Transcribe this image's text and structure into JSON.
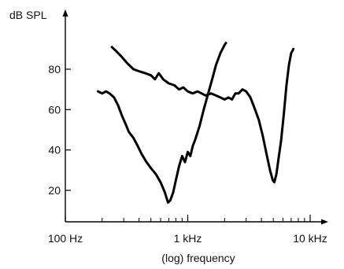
{
  "chart_data": {
    "type": "line",
    "title": "",
    "xlabel": "(log) frequency",
    "ylabel": "dB SPL",
    "x_scale": "log",
    "xlim": [
      100,
      10000
    ],
    "ylim": [
      4,
      100
    ],
    "x_ticks": [
      {
        "value": 100,
        "label": "100 Hz"
      },
      {
        "value": 1000,
        "label": "1 kHz"
      },
      {
        "value": 10000,
        "label": "10 kHz"
      }
    ],
    "x_minor_ticks": [
      200,
      300,
      400,
      500,
      600,
      700,
      800,
      900,
      2000,
      3000,
      4000,
      5000,
      6000,
      7000,
      8000,
      9000
    ],
    "y_ticks": [
      {
        "value": 20,
        "label": "20"
      },
      {
        "value": 40,
        "label": "40"
      },
      {
        "value": 60,
        "label": "60"
      },
      {
        "value": 80,
        "label": "80"
      }
    ],
    "grid": false,
    "legend": "none",
    "line_color": "#000000",
    "series": [
      {
        "points": [
          [
            185,
            69
          ],
          [
            200,
            68
          ],
          [
            215,
            69
          ],
          [
            230,
            68
          ],
          [
            250,
            66
          ],
          [
            270,
            62
          ],
          [
            290,
            57
          ],
          [
            310,
            53
          ],
          [
            330,
            49
          ],
          [
            360,
            46
          ],
          [
            390,
            42
          ],
          [
            420,
            38
          ],
          [
            460,
            34
          ],
          [
            500,
            31
          ],
          [
            550,
            28
          ],
          [
            600,
            24
          ],
          [
            650,
            19
          ],
          [
            690,
            14
          ],
          [
            720,
            15
          ],
          [
            760,
            19
          ],
          [
            800,
            25
          ],
          [
            850,
            32
          ],
          [
            900,
            37
          ],
          [
            950,
            34
          ],
          [
            1000,
            39
          ],
          [
            1050,
            37
          ],
          [
            1100,
            42
          ],
          [
            1150,
            45
          ],
          [
            1250,
            52
          ],
          [
            1350,
            60
          ],
          [
            1500,
            70
          ],
          [
            1600,
            76
          ],
          [
            1700,
            82
          ],
          [
            1850,
            88
          ],
          [
            2000,
            92
          ],
          [
            2050,
            93
          ]
        ]
      },
      {
        "points": [
          [
            240,
            91
          ],
          [
            260,
            89
          ],
          [
            290,
            86
          ],
          [
            320,
            83
          ],
          [
            360,
            80
          ],
          [
            400,
            79
          ],
          [
            450,
            78
          ],
          [
            500,
            77
          ],
          [
            540,
            75
          ],
          [
            580,
            78
          ],
          [
            630,
            75
          ],
          [
            700,
            73
          ],
          [
            780,
            72
          ],
          [
            850,
            70
          ],
          [
            920,
            71
          ],
          [
            1000,
            69
          ],
          [
            1100,
            68
          ],
          [
            1200,
            69
          ],
          [
            1300,
            68
          ],
          [
            1400,
            67
          ],
          [
            1550,
            68
          ],
          [
            1700,
            67
          ],
          [
            1850,
            66
          ],
          [
            2000,
            65
          ],
          [
            2150,
            66
          ],
          [
            2300,
            65
          ],
          [
            2450,
            68
          ],
          [
            2600,
            68
          ],
          [
            2800,
            70
          ],
          [
            3000,
            69
          ],
          [
            3250,
            66
          ],
          [
            3500,
            61
          ],
          [
            3800,
            55
          ],
          [
            4100,
            47
          ],
          [
            4400,
            38
          ],
          [
            4700,
            30
          ],
          [
            4950,
            25
          ],
          [
            5100,
            24
          ],
          [
            5300,
            28
          ],
          [
            5500,
            35
          ],
          [
            5800,
            45
          ],
          [
            6100,
            58
          ],
          [
            6400,
            72
          ],
          [
            6700,
            82
          ],
          [
            7000,
            88
          ],
          [
            7300,
            90
          ]
        ]
      }
    ]
  }
}
